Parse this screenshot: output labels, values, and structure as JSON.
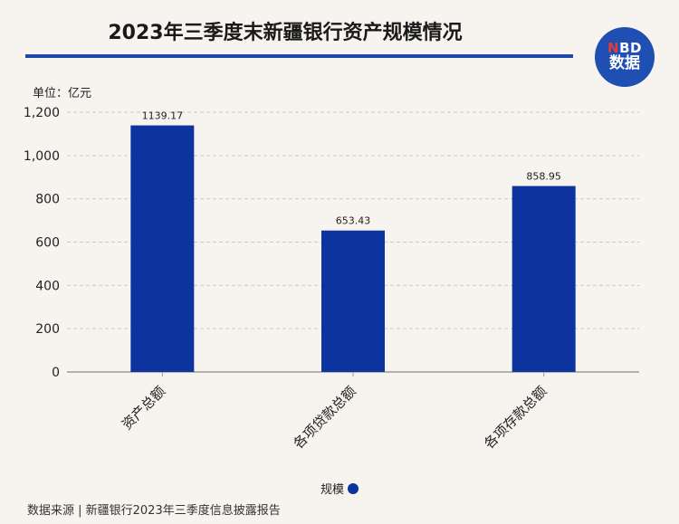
{
  "header": {
    "title": "2023年三季度末新疆银行资产规模情况",
    "badge_top": "NBD",
    "badge_bottom": "数据"
  },
  "unit_label": "单位：亿元",
  "chart_data": {
    "type": "bar",
    "categories": [
      "资产总额",
      "各项贷款总额",
      "各项存款总额"
    ],
    "series": [
      {
        "name": "规模",
        "values": [
          1139.17,
          653.43,
          858.95
        ],
        "color": "#0d339f"
      }
    ],
    "data_labels": [
      "1139.17",
      "653.43",
      "858.95"
    ],
    "ylim": [
      0,
      1200
    ],
    "yticks": [
      0,
      200,
      400,
      600,
      800,
      1000,
      1200
    ],
    "ytick_labels": [
      "0",
      "200",
      "400",
      "600",
      "800",
      "1,000",
      "1,200"
    ],
    "grid": true,
    "legend_position": "bottom"
  },
  "legend": {
    "label": "规模"
  },
  "footer": {
    "source": "数据来源 | 新疆银行2023年三季度信息披露报告"
  },
  "colors": {
    "accent": "#1e48a8",
    "bar": "#0d339f",
    "grid": "#c9c9c9",
    "axis": "#999999"
  }
}
